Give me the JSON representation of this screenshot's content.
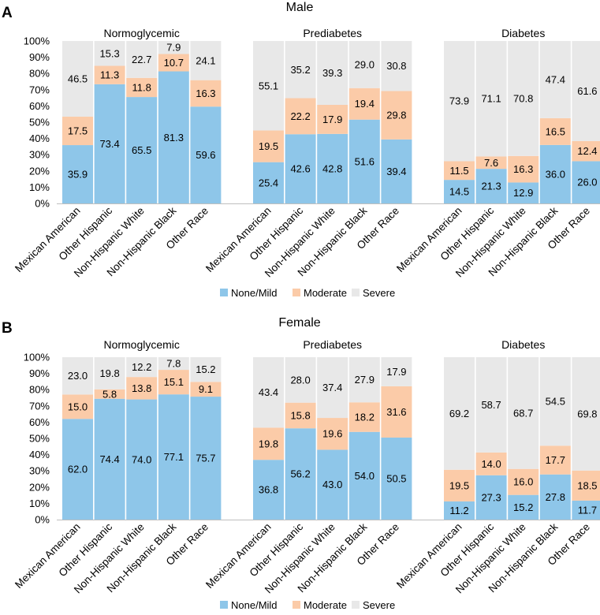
{
  "colors": {
    "none_mild": "#8ec6e9",
    "moderate": "#fbcba8",
    "severe": "#e8e8e8"
  },
  "chart_data": [
    {
      "type": "stacked-bar",
      "panel_label": "A",
      "title": "Male",
      "categories": [
        "Mexican American",
        "Other Hispanic",
        "Non-Hispanic White",
        "Non-Hispanic Black",
        "Other Race"
      ],
      "y_ticks": [
        "0%",
        "10%",
        "20%",
        "30%",
        "40%",
        "50%",
        "60%",
        "70%",
        "80%",
        "90%",
        "100%"
      ],
      "ylim": [
        0,
        100
      ],
      "series_names": [
        "None/Mild",
        "Moderate",
        "Severe"
      ],
      "legend_position": "bottom",
      "groups": [
        {
          "name": "Normoglycemic",
          "none_mild": [
            35.9,
            73.4,
            65.5,
            81.3,
            59.6
          ],
          "moderate": [
            17.5,
            11.3,
            11.8,
            10.7,
            16.3
          ],
          "severe": [
            46.5,
            15.3,
            22.7,
            7.9,
            24.1
          ]
        },
        {
          "name": "Prediabetes",
          "none_mild": [
            25.4,
            42.6,
            42.8,
            51.6,
            39.4
          ],
          "moderate": [
            19.5,
            22.2,
            17.9,
            19.4,
            29.8
          ],
          "severe": [
            55.1,
            35.2,
            39.3,
            29.0,
            30.8
          ]
        },
        {
          "name": "Diabetes",
          "none_mild": [
            14.5,
            21.3,
            12.9,
            36.0,
            26.0
          ],
          "moderate": [
            11.5,
            7.6,
            16.3,
            16.5,
            12.4
          ],
          "severe": [
            73.9,
            71.1,
            70.8,
            47.4,
            61.6
          ]
        }
      ]
    },
    {
      "type": "stacked-bar",
      "panel_label": "B",
      "title": "Female",
      "categories": [
        "Mexican American",
        "Other Hispanic",
        "Non-Hispanic White",
        "Non-Hispanic Black",
        "Other Race"
      ],
      "y_ticks": [
        "0%",
        "10%",
        "20%",
        "30%",
        "40%",
        "50%",
        "60%",
        "70%",
        "80%",
        "90%",
        "100%"
      ],
      "ylim": [
        0,
        100
      ],
      "series_names": [
        "None/Mild",
        "Moderate",
        "Severe"
      ],
      "legend_position": "bottom",
      "groups": [
        {
          "name": "Normoglycemic",
          "none_mild": [
            62.0,
            74.4,
            74.0,
            77.1,
            75.7
          ],
          "moderate": [
            15.0,
            5.8,
            13.8,
            15.1,
            9.1
          ],
          "severe": [
            23.0,
            19.8,
            12.2,
            7.8,
            15.2
          ]
        },
        {
          "name": "Prediabetes",
          "none_mild": [
            36.8,
            56.2,
            43.0,
            54.0,
            50.5
          ],
          "moderate": [
            19.8,
            15.8,
            19.6,
            18.2,
            31.6
          ],
          "severe": [
            43.4,
            28.0,
            37.4,
            27.9,
            17.9
          ]
        },
        {
          "name": "Diabetes",
          "none_mild": [
            11.2,
            27.3,
            15.2,
            27.8,
            11.7
          ],
          "moderate": [
            19.5,
            14.0,
            16.0,
            17.7,
            18.5
          ],
          "severe": [
            69.2,
            58.7,
            68.7,
            54.5,
            69.8
          ]
        }
      ]
    }
  ]
}
